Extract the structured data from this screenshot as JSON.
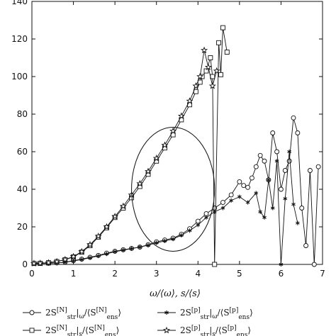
{
  "chart_data": {
    "type": "line",
    "xlabel": "ω/⟨ω⟩, s/⟨s⟩",
    "ylabel": "",
    "xlim": [
      0,
      7
    ],
    "ylim": [
      0,
      140
    ],
    "x_ticks": [
      "0",
      "1",
      "2",
      "3",
      "4",
      "5",
      "6",
      "7"
    ],
    "y_ticks": [
      "0",
      "20",
      "40",
      "60",
      "80",
      "100",
      "120",
      "140"
    ],
    "grid": false,
    "legend_position": "bottom",
    "annotation": "ellipse around x≈3.4 enclosing both curve groups",
    "series": [
      {
        "name": "2S_str^[N]|_ω / ⟨S_ens^[N]⟩",
        "marker": "circle",
        "x": [
          0.05,
          0.2,
          0.4,
          0.6,
          0.8,
          1.0,
          1.2,
          1.4,
          1.6,
          1.8,
          2.0,
          2.2,
          2.4,
          2.6,
          2.8,
          3.0,
          3.2,
          3.4,
          3.6,
          3.8,
          4.0,
          4.2,
          4.4,
          4.6,
          4.8,
          5.0,
          5.1,
          5.2,
          5.3,
          5.4,
          5.5,
          5.6,
          5.7,
          5.8,
          5.9,
          6.0,
          6.1,
          6.2,
          6.3,
          6.4,
          6.5,
          6.6,
          6.7,
          6.8,
          6.9
        ],
        "y": [
          0.5,
          0.5,
          0.6,
          0.8,
          1.2,
          2,
          2.8,
          3.8,
          4.8,
          6,
          7,
          7.8,
          8.5,
          9.2,
          10.5,
          12,
          13,
          14,
          16,
          19,
          23,
          27,
          30,
          33,
          37,
          44,
          42,
          41,
          46,
          52,
          58,
          55,
          45,
          70,
          60,
          40,
          50,
          55,
          78,
          70,
          30,
          10,
          50,
          0,
          52
        ]
      },
      {
        "name": "2S_str^[N]|_s / ⟨S_ens^[N]⟩",
        "marker": "square",
        "x": [
          0.05,
          0.2,
          0.4,
          0.6,
          0.8,
          1.0,
          1.2,
          1.4,
          1.6,
          1.8,
          2.0,
          2.2,
          2.4,
          2.6,
          2.8,
          3.0,
          3.2,
          3.4,
          3.6,
          3.8,
          3.95,
          4.05,
          4.1,
          4.2,
          4.3,
          4.35,
          4.4,
          4.5,
          4.55,
          4.6,
          4.7
        ],
        "y": [
          0.5,
          0.6,
          0.9,
          1.5,
          2.5,
          4,
          6.5,
          10,
          14.5,
          19.5,
          25,
          30,
          35.5,
          41.5,
          48,
          55,
          62,
          69,
          77,
          85,
          92,
          97,
          100,
          103,
          110,
          100,
          0,
          118,
          101,
          126,
          113
        ]
      },
      {
        "name": "2S_str^[p]|_ω / ⟨S_ens^[p]⟩",
        "marker": "asterisk",
        "x": [
          0.05,
          0.2,
          0.4,
          0.6,
          0.8,
          1.0,
          1.2,
          1.4,
          1.6,
          1.8,
          2.0,
          2.2,
          2.4,
          2.6,
          2.8,
          3.0,
          3.2,
          3.4,
          3.6,
          3.8,
          4.0,
          4.2,
          4.4,
          4.6,
          4.8,
          5.0,
          5.2,
          5.4,
          5.5,
          5.6,
          5.7,
          5.8,
          5.9,
          6.0,
          6.1,
          6.2,
          6.3,
          6.4
        ],
        "y": [
          0.5,
          0.5,
          0.6,
          0.8,
          1.1,
          1.8,
          2.6,
          3.5,
          4.5,
          5.6,
          6.8,
          7.6,
          8.4,
          9.2,
          10.2,
          11.5,
          12.5,
          13.5,
          15.5,
          18,
          21,
          25,
          28,
          30,
          34,
          36,
          33,
          38,
          28,
          25,
          45,
          30,
          55,
          0,
          35,
          60,
          32,
          22
        ]
      },
      {
        "name": "2S_str^[p]|_s / ⟨S_ens^[p]⟩",
        "marker": "star",
        "x": [
          0.05,
          0.2,
          0.4,
          0.6,
          0.8,
          1.0,
          1.2,
          1.4,
          1.6,
          1.8,
          2.0,
          2.2,
          2.4,
          2.6,
          2.8,
          3.0,
          3.2,
          3.4,
          3.6,
          3.8,
          3.95,
          4.05,
          4.15,
          4.25,
          4.35,
          4.45
        ],
        "y": [
          0.5,
          0.6,
          0.9,
          1.5,
          2.6,
          4.2,
          6.8,
          10.5,
          15,
          20,
          25.5,
          31,
          37,
          43,
          49.5,
          56.5,
          63.5,
          71,
          79,
          87,
          95,
          100,
          114,
          105,
          95,
          103
        ]
      }
    ]
  },
  "legend": [
    {
      "pre": "2S",
      "sup": "[N]",
      "sub": "str",
      "mid": "|",
      "sub2": "ω",
      "post": "/⟨S",
      "sup2": "[N]",
      "sub3": "ens",
      "end": "⟩"
    },
    {
      "pre": "2S",
      "sup": "[N]",
      "sub": "str",
      "mid": "|",
      "sub2": "s",
      "post": "/⟨S",
      "sup2": "[N]",
      "sub3": "ens",
      "end": "⟩"
    },
    {
      "pre": "2S",
      "sup": "[p]",
      "sub": "str",
      "mid": "|",
      "sub2": "ω",
      "post": "/⟨S",
      "sup2": "[p]",
      "sub3": "ens",
      "end": "⟩"
    },
    {
      "pre": "2S",
      "sup": "[p]",
      "sub": "str",
      "mid": "|",
      "sub2": "s",
      "post": "/⟨S",
      "sup2": "[p]",
      "sub3": "ens",
      "end": "⟩"
    }
  ]
}
